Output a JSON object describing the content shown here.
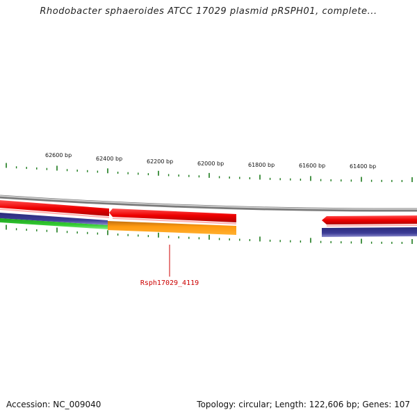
{
  "title": "Rhodobacter sphaeroides ATCC 17029 plasmid pRSPH01, complete...",
  "scale": {
    "tick_labels": [
      "62600 bp",
      "62400 bp",
      "62200 bp",
      "62000 bp",
      "61800 bp",
      "61600 bp",
      "61400 bp"
    ]
  },
  "colors": {
    "tick": "#1a7a1a",
    "backbone": "#8c8c8c",
    "gene_red": "#ee0000",
    "gene_orange": "#ff8c00",
    "gene_blue": "#3c3c96",
    "gene_green": "#33cc33",
    "gene_label": "#cc0000"
  },
  "callout": {
    "label": "Rsph17029_4119"
  },
  "footer": {
    "accession": "Accession: NC_009040",
    "summary": "Topology: circular; Length: 122,606 bp; Genes: 107"
  }
}
